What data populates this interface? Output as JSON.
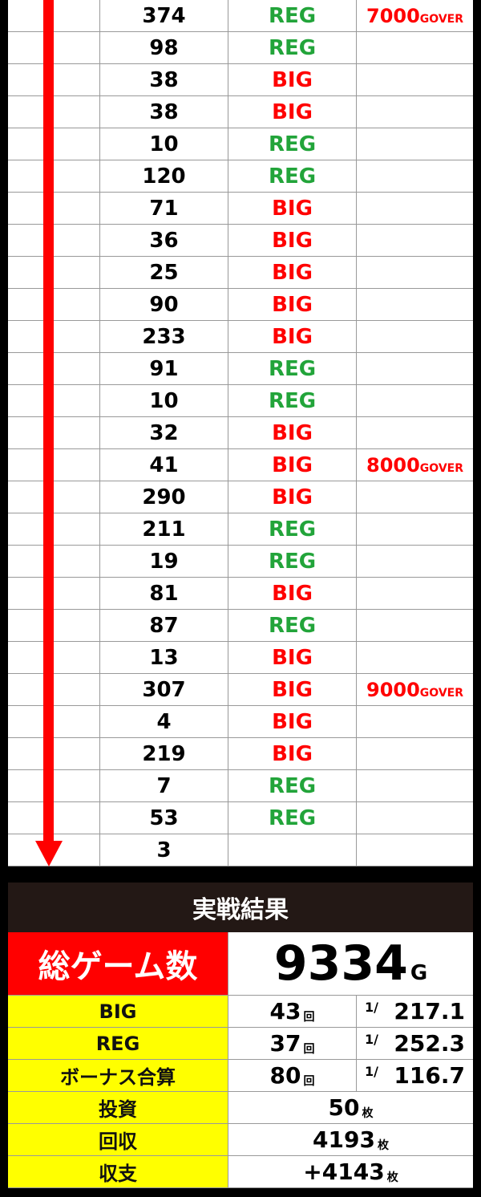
{
  "history": [
    {
      "games": "374",
      "type": "REG",
      "note": "7000",
      "note_unit": "GOVER"
    },
    {
      "games": "98",
      "type": "REG"
    },
    {
      "games": "38",
      "type": "BIG"
    },
    {
      "games": "38",
      "type": "BIG"
    },
    {
      "games": "10",
      "type": "REG"
    },
    {
      "games": "120",
      "type": "REG"
    },
    {
      "games": "71",
      "type": "BIG"
    },
    {
      "games": "36",
      "type": "BIG"
    },
    {
      "games": "25",
      "type": "BIG"
    },
    {
      "games": "90",
      "type": "BIG"
    },
    {
      "games": "233",
      "type": "BIG"
    },
    {
      "games": "91",
      "type": "REG"
    },
    {
      "games": "10",
      "type": "REG"
    },
    {
      "games": "32",
      "type": "BIG"
    },
    {
      "games": "41",
      "type": "BIG",
      "note": "8000",
      "note_unit": "GOVER"
    },
    {
      "games": "290",
      "type": "BIG"
    },
    {
      "games": "211",
      "type": "REG"
    },
    {
      "games": "19",
      "type": "REG"
    },
    {
      "games": "81",
      "type": "BIG"
    },
    {
      "games": "87",
      "type": "REG"
    },
    {
      "games": "13",
      "type": "BIG"
    },
    {
      "games": "307",
      "type": "BIG",
      "note": "9000",
      "note_unit": "GOVER"
    },
    {
      "games": "4",
      "type": "BIG"
    },
    {
      "games": "219",
      "type": "BIG"
    },
    {
      "games": "7",
      "type": "REG"
    },
    {
      "games": "53",
      "type": "REG"
    },
    {
      "games": "3",
      "type": ""
    }
  ],
  "colors": {
    "big": "#ff0000",
    "reg": "#22a43a",
    "arrow": "#ff0000",
    "label_bg": "#ffff00",
    "header_bg": "#231815"
  },
  "summary": {
    "title": "実戦結果",
    "total_label": "総ゲーム数",
    "total_value": "9334",
    "total_unit": "G",
    "rows": [
      {
        "label": "BIG",
        "count": "43",
        "unit": "回",
        "prob_prefix": "1/",
        "prob": "217.1"
      },
      {
        "label": "REG",
        "count": "37",
        "unit": "回",
        "prob_prefix": "1/",
        "prob": "252.3"
      },
      {
        "label": "ボーナス合算",
        "count": "80",
        "unit": "回",
        "prob_prefix": "1/",
        "prob": "116.7"
      }
    ],
    "money": [
      {
        "label": "投資",
        "value": "50",
        "unit": "枚"
      },
      {
        "label": "回収",
        "value": "4193",
        "unit": "枚"
      },
      {
        "label": "収支",
        "value": "+4143",
        "unit": "枚"
      }
    ]
  }
}
